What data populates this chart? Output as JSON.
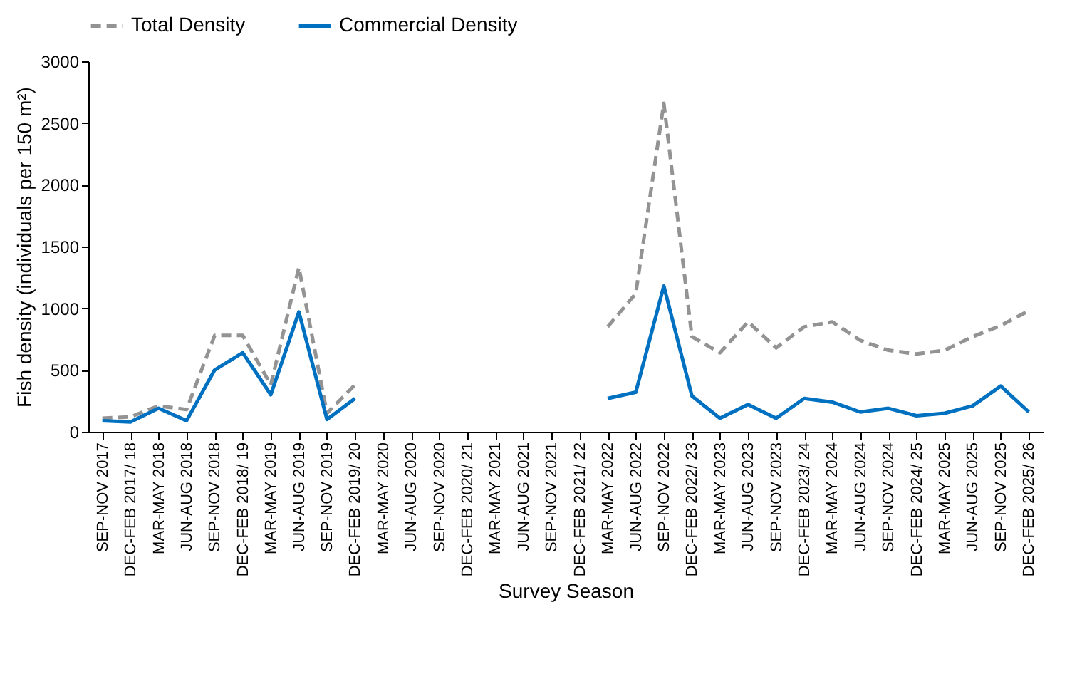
{
  "chart_data": {
    "type": "line",
    "xlabel": "Survey Season",
    "ylabel": "Fish density (individuals per 150 m²)",
    "categories": [
      "SEP-NOV 2017",
      "DEC-FEB 2017/ 18",
      "MAR-MAY 2018",
      "JUN-AUG 2018",
      "SEP-NOV 2018",
      "DEC-FEB 2018/ 19",
      "MAR-MAY 2019",
      "JUN-AUG 2019",
      "SEP-NOV 2019",
      "DEC-FEB 2019/ 20",
      "MAR-MAY 2020",
      "JUN-AUG 2020",
      "SEP-NOV 2020",
      "DEC-FEB 2020/ 21",
      "MAR-MAY 2021",
      "JUN-AUG 2021",
      "SEP-NOV 2021",
      "DEC-FEB 2021/ 22",
      "MAR-MAY 2022",
      "JUN-AUG 2022",
      "SEP-NOV 2022",
      "DEC-FEB 2022/ 23",
      "MAR-MAY 2023",
      "JUN-AUG 2023",
      "SEP-NOV 2023",
      "DEC-FEB 2023/ 24",
      "MAR-MAY 2024",
      "JUN-AUG 2024",
      "SEP-NOV 2024",
      "DEC-FEB 2024/ 25",
      "MAR-MAY 2025",
      "JUN-AUG 2025",
      "SEP-NOV 2025",
      "DEC-FEB 2025/ 26"
    ],
    "series": [
      {
        "name": "Total Density",
        "color": "#939393",
        "line_style": "dashed",
        "values": [
          110,
          120,
          210,
          180,
          780,
          780,
          380,
          1330,
          150,
          380,
          null,
          null,
          null,
          null,
          null,
          null,
          null,
          null,
          850,
          1120,
          2660,
          770,
          640,
          890,
          680,
          850,
          890,
          740,
          660,
          630,
          660,
          770,
          860,
          980
        ]
      },
      {
        "name": "Commercial Density",
        "color": "#0070c0",
        "line_style": "solid",
        "values": [
          90,
          80,
          190,
          90,
          500,
          640,
          300,
          970,
          100,
          270,
          null,
          null,
          null,
          null,
          null,
          null,
          null,
          null,
          270,
          320,
          1180,
          290,
          110,
          220,
          110,
          270,
          240,
          160,
          190,
          130,
          150,
          210,
          370,
          160
        ]
      }
    ],
    "ylim": [
      0,
      3000
    ],
    "yticks": [
      0,
      500,
      {
        "value": 1000,
        "label": "1000"
      },
      {
        "value": 1500,
        "label": "1500"
      },
      {
        "value": 2000,
        "label": "2000"
      },
      {
        "value": 2500,
        "label": "2500"
      },
      {
        "value": 3000,
        "label": "3000"
      }
    ],
    "grid": false,
    "legend": "top",
    "marker": "none"
  }
}
